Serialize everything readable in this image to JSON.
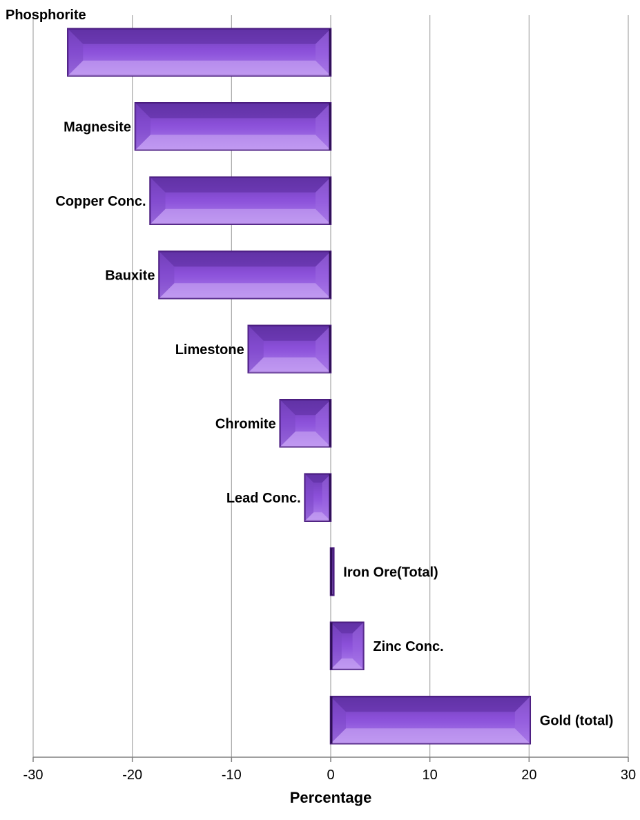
{
  "chart_data": {
    "type": "bar",
    "orientation": "horizontal",
    "title": "",
    "xlabel": "Percentage",
    "ylabel": "",
    "xlim": [
      -30,
      30
    ],
    "xticks": [
      -30,
      -20,
      -10,
      0,
      10,
      20,
      30
    ],
    "grid": true,
    "legend": "none",
    "bar_color": "#8a4fd8",
    "bar_edge_color": "#4a1c7e",
    "categories": [
      "Phosphorite",
      "Magnesite",
      "Copper Conc.",
      "Bauxite",
      "Limestone",
      "Chromite",
      "Lead Conc.",
      "Iron Ore(Total)",
      "Zinc Conc.",
      "Gold (total)"
    ],
    "values": [
      -26.5,
      -19.7,
      -18.2,
      -17.3,
      -8.3,
      -5.1,
      -2.6,
      0.3,
      3.3,
      20.1
    ]
  }
}
